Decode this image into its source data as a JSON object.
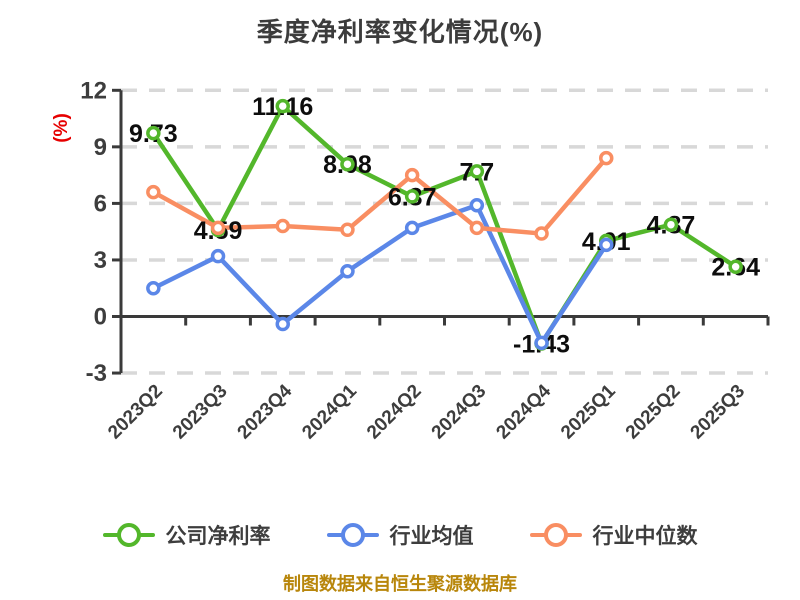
{
  "title": "季度净利率变化情况(%)",
  "footer": "制图数据来自恒生聚源数据库",
  "colors": {
    "green": "#53b72b",
    "blue": "#5b87e8",
    "orange": "#f98e62",
    "grid": "#d8d8d8",
    "axis_line": "#3a3a3a",
    "tick_text": "#3d3d3d",
    "data_label": "#0d0d0d",
    "y_axis_title_red": "#e60000",
    "footer_gold": "#b8860b",
    "title_text": "#3c3c3c"
  },
  "chart_data": {
    "type": "line",
    "title": "季度净利率变化情况(%)",
    "ylabel": "(%)",
    "xlabel": "",
    "categories": [
      "2023Q2",
      "2023Q3",
      "2023Q4",
      "2024Q1",
      "2024Q2",
      "2024Q3",
      "2024Q4",
      "2025Q1",
      "2025Q2",
      "2025Q3"
    ],
    "ylim": [
      -3,
      12
    ],
    "yticks": [
      -3,
      0,
      3,
      6,
      9,
      12
    ],
    "grid": "horizontal-dashed",
    "x_axis_position": "zero-line",
    "x_label_rotation": -45,
    "legend_position": "bottom",
    "marker": "white-filled-circle",
    "series": [
      {
        "name": "公司净利率",
        "color": "#53b72b",
        "show_point_labels": true,
        "values": [
          9.73,
          4.59,
          11.16,
          8.08,
          6.37,
          7.7,
          -1.43,
          4.01,
          4.87,
          2.64
        ]
      },
      {
        "name": "行业均值",
        "color": "#5b87e8",
        "show_point_labels": false,
        "values": [
          1.5,
          3.2,
          -0.4,
          2.4,
          4.7,
          5.9,
          -1.4,
          3.8,
          null,
          null
        ]
      },
      {
        "name": "行业中位数",
        "color": "#f98e62",
        "show_point_labels": false,
        "values": [
          6.6,
          4.7,
          4.8,
          4.6,
          7.5,
          4.7,
          4.4,
          8.4,
          null,
          null
        ]
      }
    ]
  }
}
